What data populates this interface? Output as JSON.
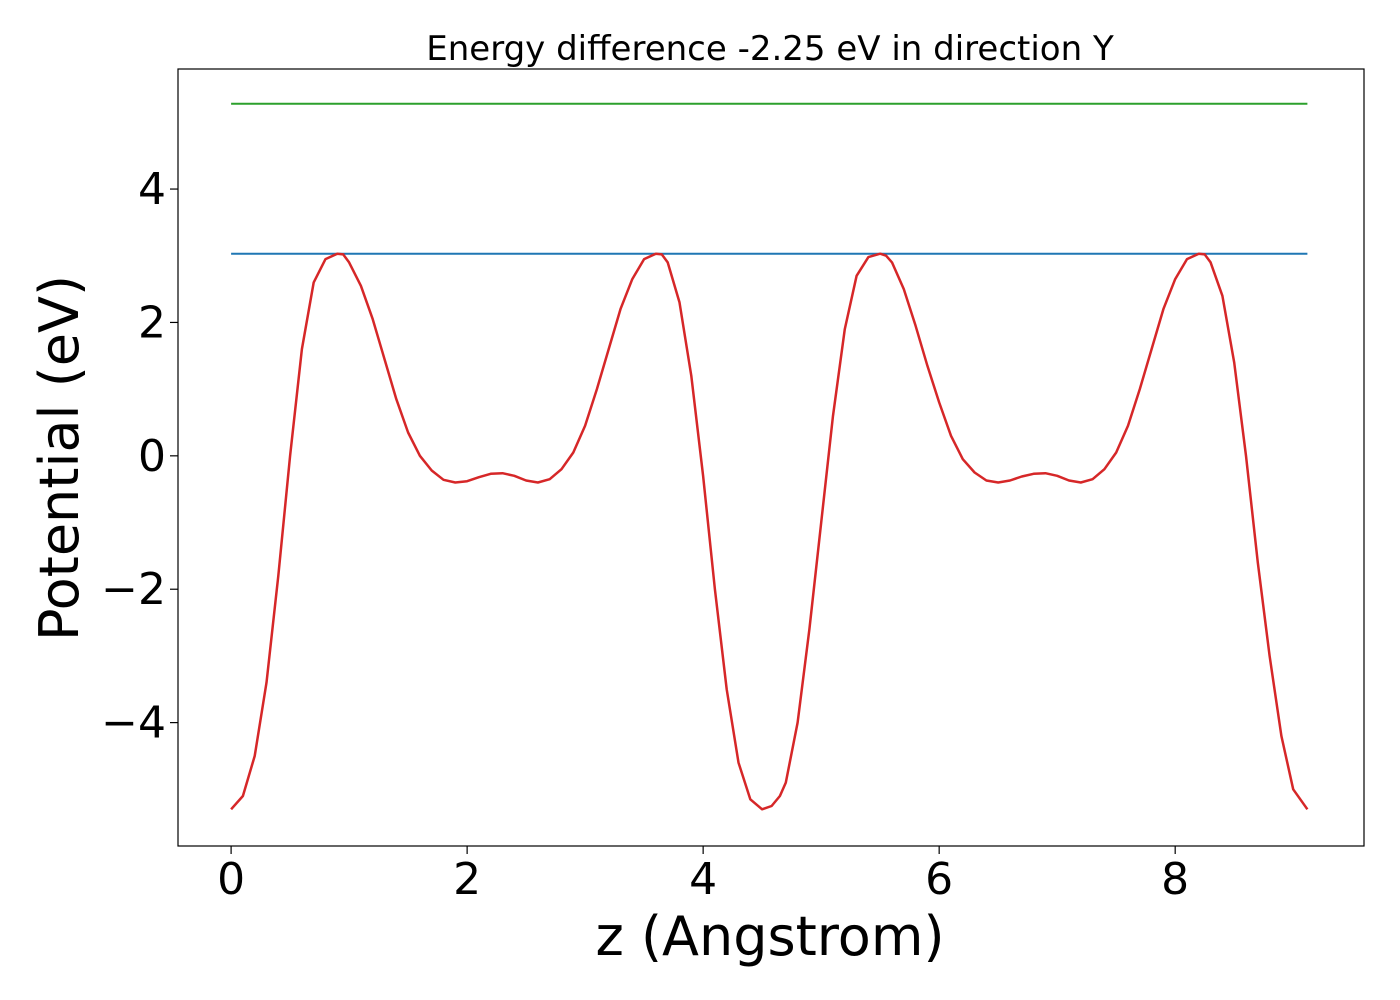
{
  "chart_data": {
    "type": "line",
    "title": "Energy difference -2.25 eV in direction Y",
    "xlabel": "z (Angstrom)",
    "ylabel": "Potential (eV)",
    "xlim": [
      -0.45,
      9.6
    ],
    "ylim": [
      -5.85,
      5.8
    ],
    "xticks": [
      0,
      2,
      4,
      6,
      8
    ],
    "xtick_labels": [
      "0",
      "2",
      "4",
      "6",
      "8"
    ],
    "yticks": [
      -4,
      -2,
      0,
      2,
      4
    ],
    "ytick_labels": [
      "−4",
      "−2",
      "0",
      "2",
      "4"
    ],
    "grid": false,
    "series": [
      {
        "color": "#2ca02c",
        "x": [
          0,
          9.12
        ],
        "y": [
          5.28,
          5.28
        ]
      },
      {
        "color": "#1f77b4",
        "x": [
          0,
          9.12
        ],
        "y": [
          3.03,
          3.03
        ]
      },
      {
        "color": "#d62728",
        "x": [
          0,
          0.1,
          0.2,
          0.3,
          0.4,
          0.5,
          0.6,
          0.7,
          0.8,
          0.9,
          0.95,
          1.0,
          1.1,
          1.2,
          1.3,
          1.4,
          1.5,
          1.6,
          1.7,
          1.8,
          1.9,
          2.0,
          2.1,
          2.2,
          2.3,
          2.4,
          2.5,
          2.6,
          2.7,
          2.8,
          2.9,
          3.0,
          3.1,
          3.2,
          3.3,
          3.4,
          3.5,
          3.6,
          3.65,
          3.7,
          3.8,
          3.9,
          4.0,
          4.1,
          4.2,
          4.3,
          4.4,
          4.5,
          4.58,
          4.65,
          4.7,
          4.8,
          4.9,
          5.0,
          5.1,
          5.2,
          5.3,
          5.4,
          5.5,
          5.55,
          5.6,
          5.7,
          5.8,
          5.9,
          6.0,
          6.1,
          6.2,
          6.3,
          6.4,
          6.5,
          6.6,
          6.7,
          6.8,
          6.9,
          7.0,
          7.1,
          7.2,
          7.3,
          7.4,
          7.5,
          7.6,
          7.7,
          7.8,
          7.9,
          8.0,
          8.1,
          8.2,
          8.25,
          8.3,
          8.4,
          8.5,
          8.6,
          8.7,
          8.8,
          8.9,
          9.0,
          9.12
        ],
        "y": [
          -5.3,
          -5.1,
          -4.5,
          -3.4,
          -1.8,
          0.0,
          1.6,
          2.6,
          2.95,
          3.03,
          3.02,
          2.9,
          2.55,
          2.05,
          1.45,
          0.85,
          0.35,
          0.0,
          -0.22,
          -0.36,
          -0.4,
          -0.38,
          -0.32,
          -0.27,
          -0.26,
          -0.3,
          -0.37,
          -0.4,
          -0.35,
          -0.2,
          0.05,
          0.45,
          1.0,
          1.6,
          2.2,
          2.65,
          2.95,
          3.03,
          3.02,
          2.9,
          2.3,
          1.2,
          -0.3,
          -2.0,
          -3.5,
          -4.6,
          -5.15,
          -5.3,
          -5.25,
          -5.1,
          -4.9,
          -4.0,
          -2.6,
          -1.0,
          0.6,
          1.9,
          2.7,
          2.98,
          3.03,
          3.0,
          2.9,
          2.5,
          1.95,
          1.35,
          0.8,
          0.3,
          -0.05,
          -0.25,
          -0.37,
          -0.4,
          -0.37,
          -0.31,
          -0.27,
          -0.26,
          -0.3,
          -0.37,
          -0.4,
          -0.35,
          -0.2,
          0.05,
          0.45,
          1.0,
          1.6,
          2.2,
          2.65,
          2.95,
          3.03,
          3.02,
          2.9,
          2.4,
          1.4,
          0.0,
          -1.6,
          -3.0,
          -4.2,
          -5.0,
          -5.3
        ]
      }
    ]
  }
}
